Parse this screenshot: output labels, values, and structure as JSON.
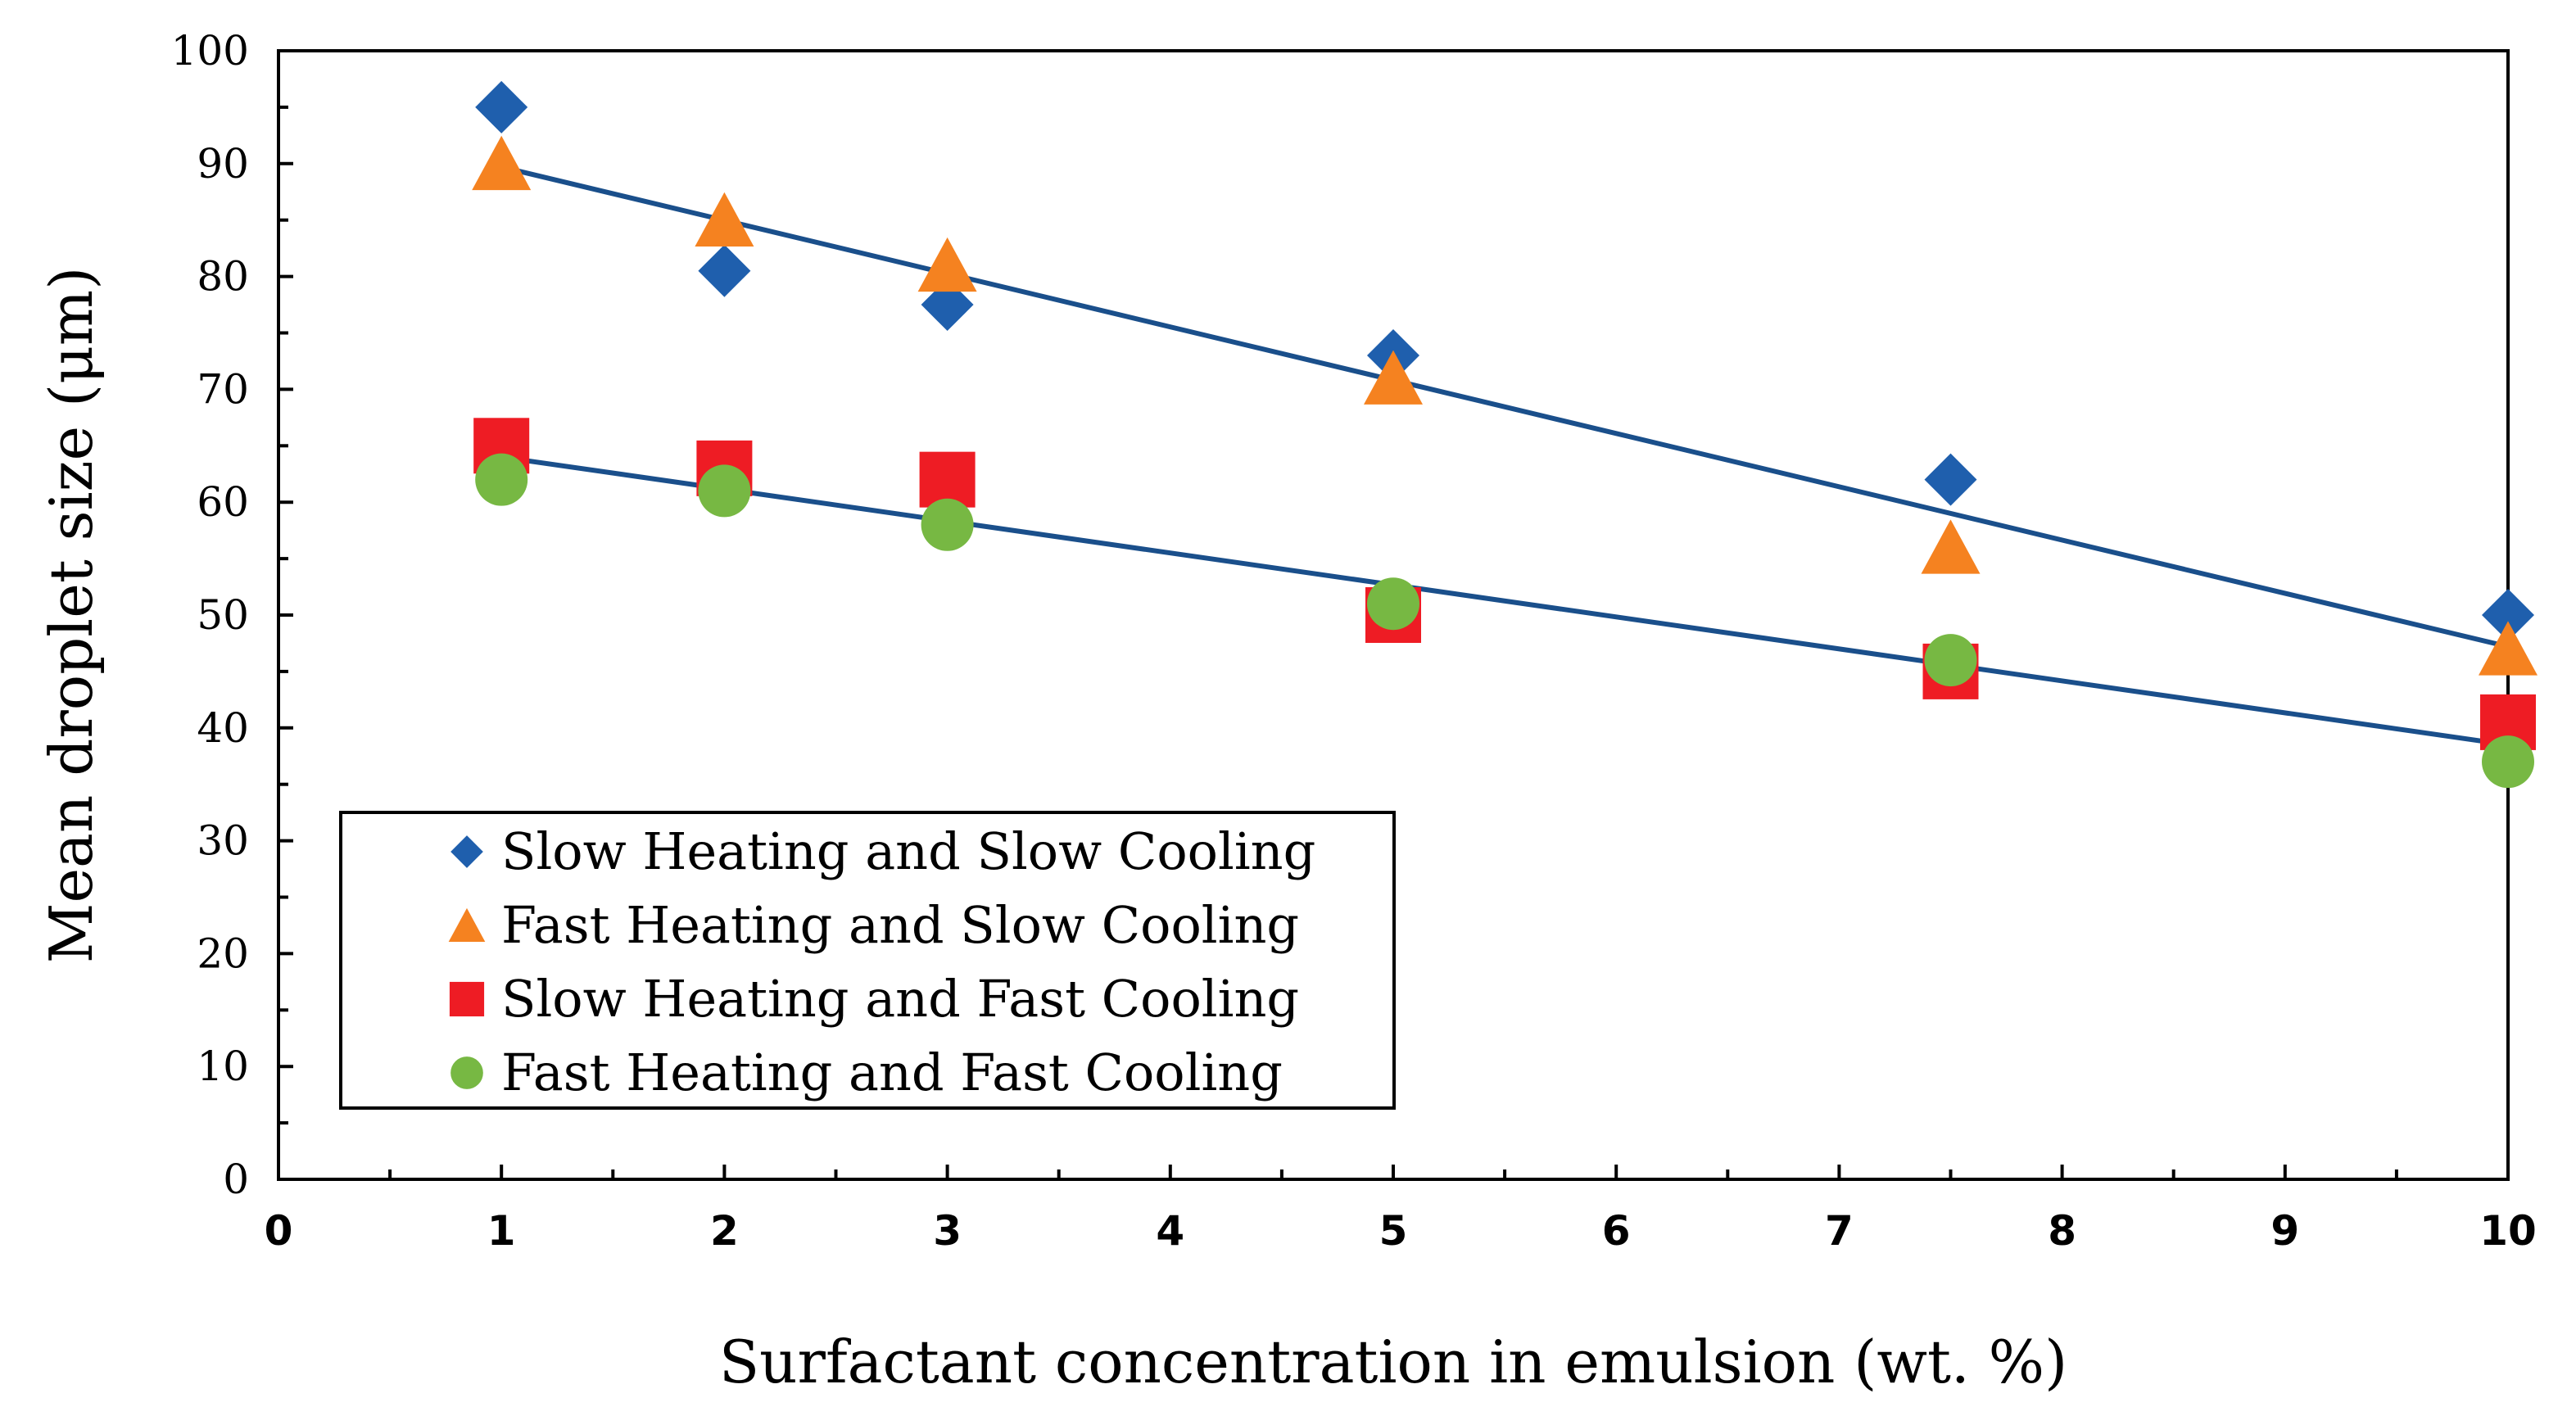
{
  "chart_data": {
    "type": "scatter",
    "title": "",
    "xlabel": "Surfactant concentration in emulsion (wt. %)",
    "ylabel": "Mean droplet size (μm)",
    "xlim": [
      0,
      10
    ],
    "ylim": [
      0,
      100
    ],
    "x_ticks": [
      "0",
      "1",
      "2",
      "3",
      "4",
      "5",
      "6",
      "7",
      "8",
      "9",
      "10"
    ],
    "y_ticks": [
      "0",
      "10",
      "20",
      "30",
      "40",
      "50",
      "60",
      "70",
      "80",
      "90",
      "100"
    ],
    "grid": false,
    "legend_position": "bottom-left",
    "series": [
      {
        "name": "Slow Heating and Slow Cooling",
        "marker": "diamond",
        "color": "#1f5fad",
        "x": [
          1,
          2,
          3,
          5,
          7.5,
          10
        ],
        "y": [
          95,
          80.5,
          77.5,
          73,
          62,
          50
        ]
      },
      {
        "name": "Fast Heating and Slow Cooling",
        "marker": "triangle",
        "color": "#f58220",
        "x": [
          1,
          2,
          3,
          5,
          7.5,
          10
        ],
        "y": [
          90,
          85,
          81,
          71,
          56,
          47
        ]
      },
      {
        "name": "Slow Heating and Fast Cooling",
        "marker": "square",
        "color": "#ee1c24",
        "x": [
          1,
          2,
          3,
          5,
          7.5,
          10
        ],
        "y": [
          65,
          63,
          62,
          50,
          45,
          40.5
        ]
      },
      {
        "name": "Fast Heating and Fast Cooling",
        "marker": "circle",
        "color": "#77b843",
        "x": [
          1,
          2,
          3,
          5,
          7.5,
          10
        ],
        "y": [
          62,
          61,
          58,
          51,
          46,
          37
        ]
      }
    ],
    "trendlines": [
      {
        "name": "upper-trendline",
        "color": "#1a4f8b",
        "x": [
          1,
          10
        ],
        "y": [
          89.7,
          47.2
        ]
      },
      {
        "name": "lower-trendline",
        "color": "#1a4f8b",
        "x": [
          1,
          10
        ],
        "y": [
          64,
          38.5
        ]
      }
    ]
  }
}
